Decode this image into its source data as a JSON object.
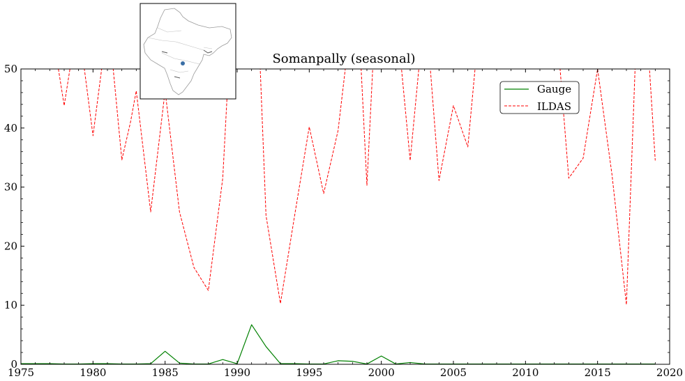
{
  "chart_data": {
    "type": "line",
    "title": "Somanpally (seasonal)",
    "xlabel": "",
    "ylabel": "",
    "xlim": [
      1975,
      2020
    ],
    "ylim": [
      0,
      50
    ],
    "x_ticks": [
      1975,
      1980,
      1985,
      1990,
      1995,
      2000,
      2005,
      2010,
      2015,
      2020
    ],
    "y_ticks": [
      0,
      10,
      20,
      30,
      40,
      50
    ],
    "legend_position": "top-right",
    "grid": false,
    "inset": {
      "content": "locator map of India with station marker",
      "marker_color": "#3a6ea5"
    },
    "series": [
      {
        "name": "Gauge",
        "color": "#008000",
        "dash": "solid",
        "x": [
          1975,
          1976,
          1977,
          1978,
          1979,
          1980,
          1981,
          1982,
          1983,
          1984,
          1985,
          1986,
          1987,
          1988,
          1989,
          1990,
          1991,
          1992,
          1993,
          1994,
          1995,
          1996,
          1997,
          1998,
          1999,
          2000,
          2001,
          2002,
          2003,
          2004,
          2005,
          2006,
          2007,
          2008,
          2009,
          2010,
          2011,
          2012,
          2013,
          2014,
          2015,
          2016,
          2017,
          2018,
          2019
        ],
        "y": [
          0.1,
          0.1,
          0.1,
          0.05,
          0.05,
          0.1,
          0.1,
          0.05,
          0.05,
          0.1,
          2.2,
          0.2,
          0.05,
          0.05,
          0.8,
          0.1,
          6.7,
          3.0,
          0.1,
          0.1,
          0.05,
          0.05,
          0.6,
          0.5,
          0.05,
          1.4,
          0.05,
          0.3,
          0.05,
          0.05,
          0.05,
          0.05,
          0.05,
          0.05,
          0.05,
          0.05,
          0.05,
          0.05,
          0.05,
          0.05,
          0.05,
          0.05,
          0.05,
          0.05,
          0.05
        ]
      },
      {
        "name": "ILDAS",
        "color": "#ff0000",
        "dash": "dashed",
        "x": [
          1977.6,
          1978,
          1978.4,
          1979.4,
          1980,
          1980.6,
          1981.4,
          1982,
          1982.6,
          1983,
          1984,
          1985,
          1986,
          1987,
          1988,
          1989,
          1989.4,
          1991.6,
          1992,
          1993,
          1994,
          1995,
          1996,
          1997,
          1997.5,
          1998.6,
          1999,
          1999.4,
          2001.4,
          2002,
          2002.6,
          2003.4,
          2004,
          2005,
          2006,
          2006.5,
          2012.4,
          2013,
          2014,
          2015,
          2016,
          2017,
          2017.6,
          2018.6,
          2019
        ],
        "y": [
          50,
          43.8,
          50,
          50,
          38.7,
          50,
          50,
          34.6,
          41,
          46.3,
          25.8,
          46.3,
          25.8,
          16.4,
          12.5,
          31.5,
          50,
          50,
          25.2,
          10.3,
          25.4,
          40.2,
          28.9,
          39.6,
          50,
          50,
          30.3,
          50,
          50,
          34.5,
          50,
          50,
          31.1,
          43.8,
          36.8,
          50,
          50,
          31.5,
          34.9,
          50,
          32.1,
          10.1,
          50,
          50,
          34.5
        ]
      }
    ]
  }
}
